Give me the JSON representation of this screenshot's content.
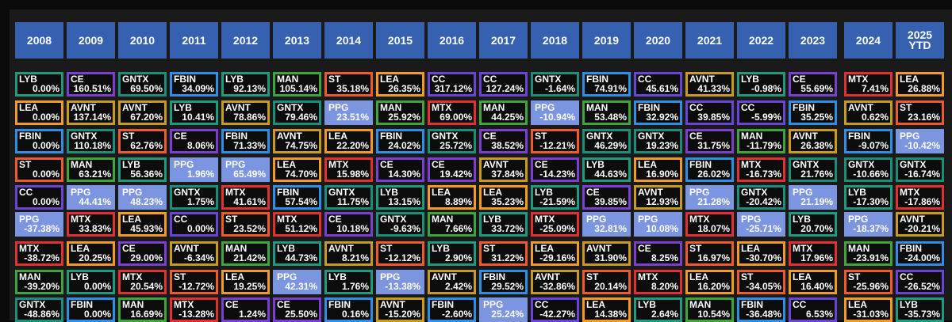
{
  "chart_data": {
    "type": "table",
    "title": "",
    "years": [
      "2008",
      "2009",
      "2010",
      "2011",
      "2012",
      "2013",
      "2014",
      "2015",
      "2016",
      "2017",
      "2018",
      "2019",
      "2020",
      "2021",
      "2022",
      "2023",
      "2024",
      "2025 YTD"
    ],
    "ticker_colors": {
      "LYB": "#1e9a7e",
      "CE": "#7a3fd0",
      "GNTX": "#198e78",
      "FBIN": "#2f8fe6",
      "MAN": "#3fa43a",
      "ST": "#ef5a2a",
      "LEA": "#f39a22",
      "CC": "#6a44d6",
      "MTX": "#e03030",
      "AVNT": "#c89a20",
      "PPG": "#7e96e8"
    },
    "highlight_fill": "#7b95e0",
    "columns": [
      {
        "year": "2008",
        "cells": [
          [
            "LYB",
            "0.00%"
          ],
          [
            "LEA",
            "0.00%"
          ],
          [
            "FBIN",
            "0.00%"
          ],
          [
            "ST",
            "0.00%"
          ],
          [
            "CC",
            "0.00%"
          ],
          [
            "PPG",
            "-37.38%"
          ],
          [
            "MTX",
            "-38.72%"
          ],
          [
            "MAN",
            "-39.20%"
          ],
          [
            "GNTX",
            "-48.86%"
          ]
        ]
      },
      {
        "year": "2009",
        "cells": [
          [
            "CE",
            "160.51%"
          ],
          [
            "AVNT",
            "137.14%"
          ],
          [
            "GNTX",
            "110.18%"
          ],
          [
            "MAN",
            "63.21%"
          ],
          [
            "PPG",
            "44.41%"
          ],
          [
            "MTX",
            "33.83%"
          ],
          [
            "LEA",
            "20.25%"
          ],
          [
            "LYB",
            "0.00%"
          ],
          [
            "FBIN",
            "0.00%"
          ]
        ]
      },
      {
        "year": "2010",
        "cells": [
          [
            "GNTX",
            "69.50%"
          ],
          [
            "AVNT",
            "67.20%"
          ],
          [
            "ST",
            "62.76%"
          ],
          [
            "LYB",
            "56.36%"
          ],
          [
            "PPG",
            "48.23%"
          ],
          [
            "LEA",
            "45.93%"
          ],
          [
            "CE",
            "29.00%"
          ],
          [
            "MTX",
            "20.54%"
          ],
          [
            "MAN",
            "16.69%"
          ]
        ]
      },
      {
        "year": "2011",
        "cells": [
          [
            "FBIN",
            "34.09%"
          ],
          [
            "LYB",
            "10.41%"
          ],
          [
            "CE",
            "8.06%"
          ],
          [
            "PPG",
            "1.96%"
          ],
          [
            "GNTX",
            "1.75%"
          ],
          [
            "CC",
            "0.00%"
          ],
          [
            "AVNT",
            "-6.34%"
          ],
          [
            "ST",
            "-12.72%"
          ],
          [
            "MTX",
            "-13.28%"
          ]
        ]
      },
      {
        "year": "2012",
        "cells": [
          [
            "LYB",
            "92.13%"
          ],
          [
            "AVNT",
            "78.86%"
          ],
          [
            "FBIN",
            "71.33%"
          ],
          [
            "PPG",
            "65.49%"
          ],
          [
            "MTX",
            "41.61%"
          ],
          [
            "ST",
            "23.52%"
          ],
          [
            "MAN",
            "21.42%"
          ],
          [
            "LEA",
            "19.25%"
          ],
          [
            "CE",
            "1.24%"
          ]
        ]
      },
      {
        "year": "2013",
        "cells": [
          [
            "MAN",
            "105.14%"
          ],
          [
            "GNTX",
            "79.46%"
          ],
          [
            "AVNT",
            "74.75%"
          ],
          [
            "LEA",
            "74.70%"
          ],
          [
            "FBIN",
            "57.54%"
          ],
          [
            "MTX",
            "51.12%"
          ],
          [
            "LYB",
            "44.73%"
          ],
          [
            "PPG",
            "42.31%"
          ],
          [
            "CE",
            "25.50%"
          ]
        ]
      },
      {
        "year": "2014",
        "cells": [
          [
            "ST",
            "35.18%"
          ],
          [
            "PPG",
            "23.51%"
          ],
          [
            "LEA",
            "22.20%"
          ],
          [
            "MTX",
            "15.98%"
          ],
          [
            "GNTX",
            "11.75%"
          ],
          [
            "CE",
            "10.18%"
          ],
          [
            "AVNT",
            "8.21%"
          ],
          [
            "LYB",
            "1.76%"
          ],
          [
            "FBIN",
            "0.16%"
          ]
        ]
      },
      {
        "year": "2015",
        "cells": [
          [
            "LEA",
            "26.35%"
          ],
          [
            "MAN",
            "25.92%"
          ],
          [
            "FBIN",
            "24.02%"
          ],
          [
            "CE",
            "14.30%"
          ],
          [
            "LYB",
            "13.15%"
          ],
          [
            "GNTX",
            "-9.63%"
          ],
          [
            "ST",
            "-12.12%"
          ],
          [
            "PPG",
            "-13.38%"
          ],
          [
            "AVNT",
            "-15.20%"
          ]
        ]
      },
      {
        "year": "2016",
        "cells": [
          [
            "CC",
            "317.12%"
          ],
          [
            "MTX",
            "69.00%"
          ],
          [
            "GNTX",
            "25.72%"
          ],
          [
            "CE",
            "19.42%"
          ],
          [
            "LEA",
            "8.89%"
          ],
          [
            "MAN",
            "7.66%"
          ],
          [
            "LYB",
            "2.90%"
          ],
          [
            "AVNT",
            "2.42%"
          ],
          [
            "FBIN",
            "-2.60%"
          ]
        ]
      },
      {
        "year": "2017",
        "cells": [
          [
            "CC",
            "127.24%"
          ],
          [
            "MAN",
            "44.25%"
          ],
          [
            "CE",
            "38.52%"
          ],
          [
            "AVNT",
            "37.84%"
          ],
          [
            "LEA",
            "35.23%"
          ],
          [
            "LYB",
            "33.72%"
          ],
          [
            "ST",
            "31.22%"
          ],
          [
            "FBIN",
            "29.52%"
          ],
          [
            "PPG",
            "25.24%"
          ]
        ]
      },
      {
        "year": "2018",
        "cells": [
          [
            "GNTX",
            "-1.64%"
          ],
          [
            "PPG",
            "-10.94%"
          ],
          [
            "ST",
            "-12.21%"
          ],
          [
            "CE",
            "-14.23%"
          ],
          [
            "LYB",
            "-21.59%"
          ],
          [
            "MTX",
            "-25.09%"
          ],
          [
            "LEA",
            "-29.16%"
          ],
          [
            "AVNT",
            "-32.86%"
          ],
          [
            "CC",
            "-42.27%"
          ]
        ]
      },
      {
        "year": "2019",
        "cells": [
          [
            "FBIN",
            "74.91%"
          ],
          [
            "MAN",
            "53.48%"
          ],
          [
            "GNTX",
            "46.29%"
          ],
          [
            "LYB",
            "44.63%"
          ],
          [
            "CE",
            "39.85%"
          ],
          [
            "PPG",
            "32.81%"
          ],
          [
            "AVNT",
            "31.90%"
          ],
          [
            "ST",
            "20.14%"
          ],
          [
            "LEA",
            "14.38%"
          ]
        ]
      },
      {
        "year": "2020",
        "cells": [
          [
            "CC",
            "45.61%"
          ],
          [
            "FBIN",
            "32.92%"
          ],
          [
            "GNTX",
            "19.23%"
          ],
          [
            "LEA",
            "16.90%"
          ],
          [
            "AVNT",
            "12.93%"
          ],
          [
            "PPG",
            "10.08%"
          ],
          [
            "CE",
            "8.25%"
          ],
          [
            "MTX",
            "8.20%"
          ],
          [
            "LYB",
            "2.64%"
          ]
        ]
      },
      {
        "year": "2021",
        "cells": [
          [
            "AVNT",
            "41.33%"
          ],
          [
            "CC",
            "39.85%"
          ],
          [
            "CE",
            "31.75%"
          ],
          [
            "FBIN",
            "26.02%"
          ],
          [
            "PPG",
            "21.28%"
          ],
          [
            "MTX",
            "18.07%"
          ],
          [
            "ST",
            "16.97%"
          ],
          [
            "LEA",
            "16.20%"
          ],
          [
            "MAN",
            "10.54%"
          ]
        ]
      },
      {
        "year": "2022",
        "cells": [
          [
            "LYB",
            "-0.98%"
          ],
          [
            "CC",
            "-5.99%"
          ],
          [
            "MAN",
            "-11.79%"
          ],
          [
            "MTX",
            "-16.73%"
          ],
          [
            "GNTX",
            "-20.42%"
          ],
          [
            "PPG",
            "-25.71%"
          ],
          [
            "LEA",
            "-30.70%"
          ],
          [
            "ST",
            "-34.05%"
          ],
          [
            "FBIN",
            "-36.48%"
          ]
        ]
      },
      {
        "year": "2023",
        "cells": [
          [
            "CE",
            "55.69%"
          ],
          [
            "FBIN",
            "35.25%"
          ],
          [
            "AVNT",
            "26.38%"
          ],
          [
            "GNTX",
            "21.76%"
          ],
          [
            "PPG",
            "21.19%"
          ],
          [
            "LYB",
            "20.70%"
          ],
          [
            "MTX",
            "17.96%"
          ],
          [
            "LEA",
            "16.40%"
          ],
          [
            "CC",
            "6.53%"
          ]
        ]
      },
      {
        "year": "2024",
        "cells": [
          [
            "MTX",
            "7.41%"
          ],
          [
            "AVNT",
            "0.62%"
          ],
          [
            "FBIN",
            "-9.07%"
          ],
          [
            "GNTX",
            "-10.66%"
          ],
          [
            "LYB",
            "-17.30%"
          ],
          [
            "PPG",
            "-18.37%"
          ],
          [
            "MAN",
            "-23.91%"
          ],
          [
            "ST",
            "-25.96%"
          ],
          [
            "LEA",
            "-31.03%"
          ]
        ]
      },
      {
        "year": "2025 YTD",
        "cells": [
          [
            "LEA",
            "26.88%"
          ],
          [
            "ST",
            "23.16%"
          ],
          [
            "PPG",
            "-10.42%"
          ],
          [
            "GNTX",
            "-16.74%"
          ],
          [
            "MTX",
            "-17.86%"
          ],
          [
            "AVNT",
            "-20.21%"
          ],
          [
            "FBIN",
            "-24.00%"
          ],
          [
            "CC",
            "-26.52%"
          ],
          [
            "LYB",
            "-35.73%"
          ]
        ]
      }
    ]
  }
}
